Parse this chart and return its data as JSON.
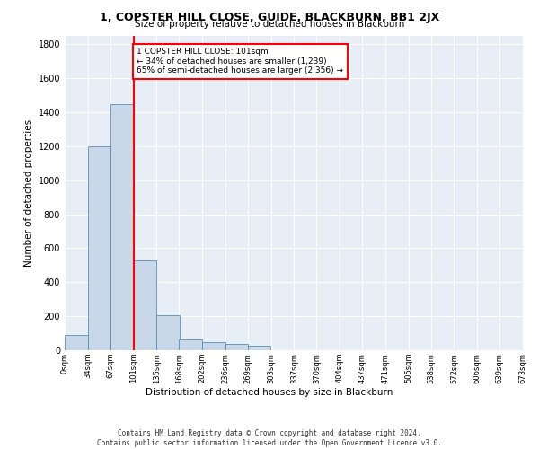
{
  "title": "1, COPSTER HILL CLOSE, GUIDE, BLACKBURN, BB1 2JX",
  "subtitle": "Size of property relative to detached houses in Blackburn",
  "xlabel": "Distribution of detached houses by size in Blackburn",
  "ylabel": "Number of detached properties",
  "bar_color": "#c8d8e8",
  "bar_edge_color": "#5b8db8",
  "background_color": "#e8eef6",
  "grid_color": "#ffffff",
  "annotation_text": "1 COPSTER HILL CLOSE: 101sqm\n← 34% of detached houses are smaller (1,239)\n65% of semi-detached houses are larger (2,356) →",
  "vline_x": 101,
  "vline_color": "red",
  "footer": "Contains HM Land Registry data © Crown copyright and database right 2024.\nContains public sector information licensed under the Open Government Licence v3.0.",
  "bin_edges": [
    0,
    34,
    67,
    101,
    135,
    168,
    202,
    236,
    269,
    303,
    337,
    370,
    404,
    437,
    471,
    505,
    538,
    572,
    606,
    639,
    673
  ],
  "bin_values": [
    90,
    1200,
    1450,
    530,
    205,
    65,
    45,
    35,
    28,
    0,
    0,
    0,
    0,
    0,
    0,
    0,
    0,
    0,
    0,
    0
  ],
  "xlim": [
    0,
    673
  ],
  "ylim": [
    0,
    1850
  ],
  "yticks": [
    0,
    200,
    400,
    600,
    800,
    1000,
    1200,
    1400,
    1600,
    1800
  ],
  "xtick_labels": [
    "0sqm",
    "34sqm",
    "67sqm",
    "101sqm",
    "135sqm",
    "168sqm",
    "202sqm",
    "236sqm",
    "269sqm",
    "303sqm",
    "337sqm",
    "370sqm",
    "404sqm",
    "437sqm",
    "471sqm",
    "505sqm",
    "538sqm",
    "572sqm",
    "606sqm",
    "639sqm",
    "673sqm"
  ]
}
